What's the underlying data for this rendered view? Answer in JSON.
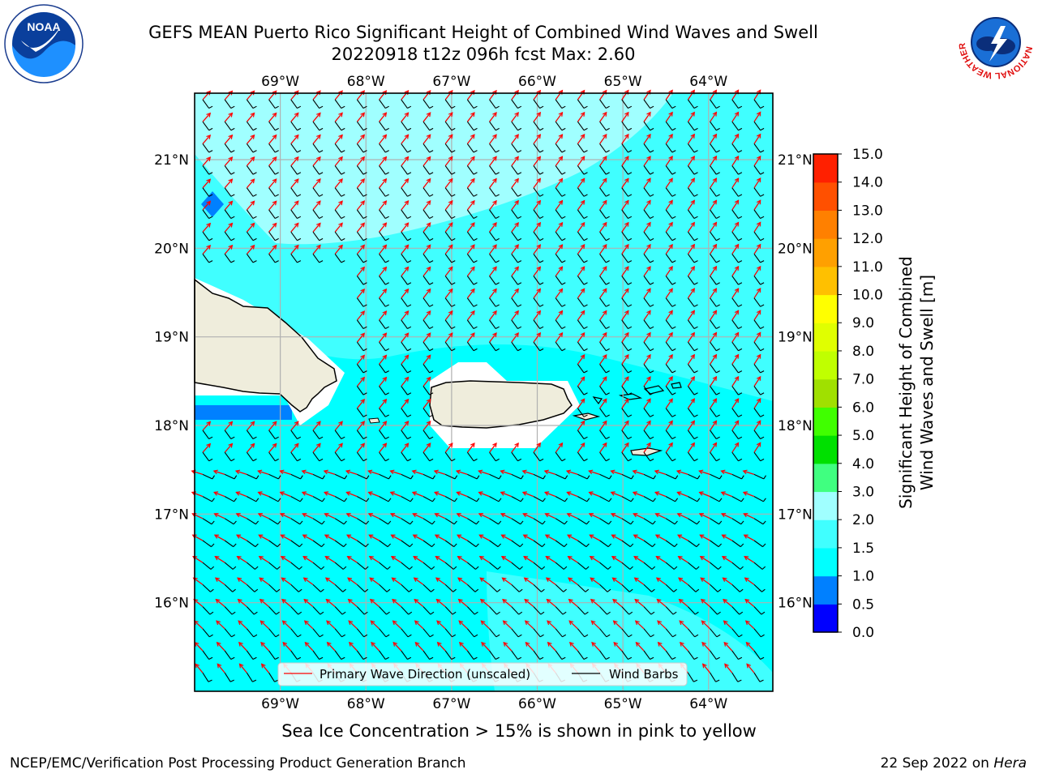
{
  "title": {
    "line1": "GEFS MEAN Puerto Rico Significant Height of Combined Wind Waves and Swell",
    "line2": "20220918 t12z 096h fcst   Max: 2.60"
  },
  "logos": {
    "left": {
      "name": "noaa-logo",
      "text": "NOAA"
    },
    "right": {
      "name": "nws-logo",
      "text": "NATIONAL WEATHER SERVICE"
    }
  },
  "map": {
    "lon_labels": [
      "69°W",
      "68°W",
      "67°W",
      "66°W",
      "65°W",
      "64°W"
    ],
    "lat_labels": [
      "21°N",
      "20°N",
      "19°N",
      "18°N",
      "17°N",
      "16°N"
    ],
    "lon_values": [
      -69,
      -68,
      -67,
      -66,
      -65,
      -64
    ],
    "lat_values": [
      21,
      20,
      19,
      18,
      17,
      16
    ],
    "extent": {
      "lon_min": -70,
      "lon_max": -63.25,
      "lat_min": 15.0,
      "lat_max": 21.75
    },
    "colors": {
      "land": "#efeddc",
      "coast": "#000000",
      "grid": "#b0b0b0"
    }
  },
  "legend": {
    "wave_direction": "Primary Wave Direction (unscaled)",
    "wind_barbs": "Wind Barbs",
    "wave_color": "#ff0000",
    "barb_color": "#000000"
  },
  "colorbar": {
    "label_line1": "Significant Height of Combined",
    "label_line2": "Wind Waves and Swell [m]",
    "ticks": [
      "0.0",
      "0.5",
      "1.0",
      "1.5",
      "2.0",
      "3.0",
      "4.0",
      "5.0",
      "6.0",
      "7.0",
      "8.0",
      "9.0",
      "10.0",
      "11.0",
      "12.0",
      "13.0",
      "14.0",
      "15.0"
    ],
    "colors": [
      "#0000ff",
      "#0080ff",
      "#00ffff",
      "#40ffff",
      "#a0ffff",
      "#40ff80",
      "#00e000",
      "#40ff00",
      "#a0e000",
      "#c0ff00",
      "#e0ff00",
      "#ffff00",
      "#ffc000",
      "#ffa000",
      "#ff8000",
      "#ff5000",
      "#ff2000"
    ]
  },
  "caption": "Sea Ice Concentration > 15% is shown in pink to yellow",
  "footer": {
    "left": "NCEP/EMC/Verification Post Processing Product Generation Branch",
    "right_date": "22 Sep 2022 on",
    "right_host": "Hera"
  }
}
